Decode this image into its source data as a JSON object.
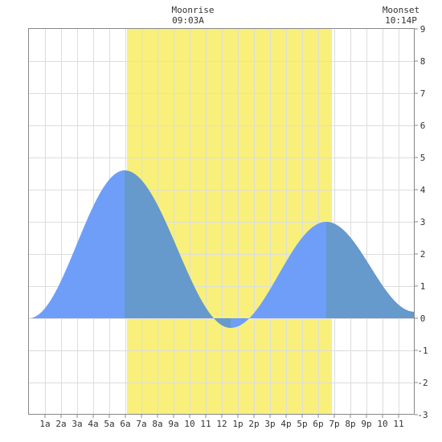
{
  "header": {
    "moonrise_label": "Moonrise",
    "moonrise_time": "09:03A",
    "moonset_label": "Moonset",
    "moonset_time": "10:14P"
  },
  "colors": {
    "daylight": "#f8f07a",
    "tide_night": "#6e9ef8",
    "tide_day": "#6699cc",
    "grid": "#dddddd",
    "frame": "#888888",
    "background": "#ffffff"
  },
  "chart_data": {
    "type": "area",
    "title": "",
    "xlabel": "",
    "ylabel": "",
    "xlim": [
      0,
      24
    ],
    "ylim": [
      -3,
      9
    ],
    "grid": true,
    "daylight_hours": [
      6.1,
      18.85
    ],
    "moonrise_hour": 9.05,
    "moonset_hour": 22.23,
    "x_tick_labels": [
      "1a",
      "2a",
      "3a",
      "4a",
      "5a",
      "6a",
      "7a",
      "8a",
      "9a",
      "10",
      "11",
      "12",
      "1p",
      "2p",
      "3p",
      "4p",
      "5p",
      "6p",
      "7p",
      "8p",
      "9p",
      "10",
      "11"
    ],
    "y_tick_labels": [
      "-3",
      "-2",
      "-1",
      "0",
      "1",
      "2",
      "3",
      "4",
      "5",
      "6",
      "7",
      "8",
      "9"
    ],
    "series": [
      {
        "extremes": [
          {
            "hour": 0.0,
            "value": 0.0
          },
          {
            "hour": 5.95,
            "value": 4.6
          },
          {
            "hour": 12.55,
            "value": -0.3
          },
          {
            "hour": 18.5,
            "value": 3.0
          },
          {
            "hour": 24.0,
            "value": 0.2
          }
        ]
      }
    ]
  }
}
